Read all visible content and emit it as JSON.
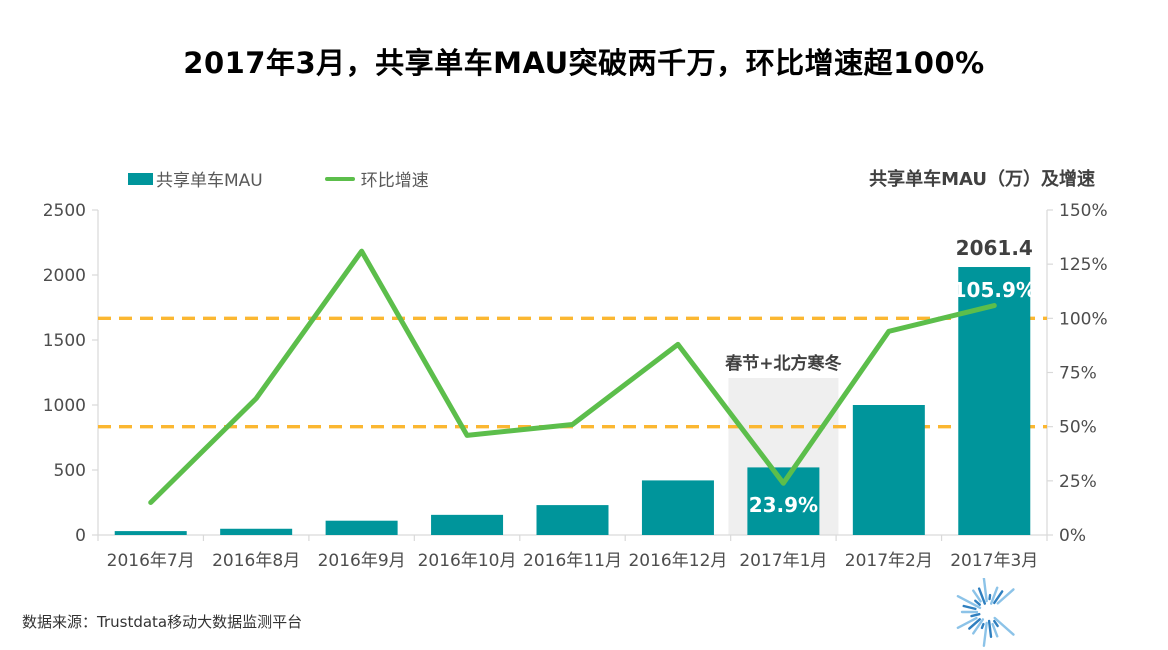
{
  "title": "2017年3月，共享单车MAU突破两千万，环比增速超100%",
  "legend": {
    "bar_label": "共享单车MAU",
    "line_label": "环比增速"
  },
  "right_axis_title": "共享单车MAU（万）及增速",
  "annotation": {
    "text": "春节+北方寒冬",
    "category": "2017年1月",
    "category_index": 6
  },
  "labels": {
    "peak_value": "2061.4",
    "peak_growth": "105.9%",
    "dip_growth": "23.9%"
  },
  "footer": {
    "source": "数据来源：Trustdata移动大数据监测平台",
    "logo_text": "Trustdata",
    "logo_icon": "sunburst-icon"
  },
  "colors": {
    "bar": "#00959B",
    "line": "#5CBE4B",
    "dashed": "#FBB731",
    "axis_line": "#D9D9D9",
    "axis_text": "#4D4D4D",
    "highlight": "#EFEFEF",
    "label_dark": "#404040",
    "label_white": "#FFFFFF",
    "logo_blue_dark": "#2F7FBF",
    "logo_blue_light": "#8CC3E8",
    "logo_text_color": "#5FA8DC"
  },
  "chart_data": {
    "type": "bar+line combo",
    "title": "2017年3月，共享单车MAU突破两千万，环比增速超100%",
    "categories": [
      "2016年7月",
      "2016年8月",
      "2016年9月",
      "2016年10月",
      "2016年11月",
      "2016年12月",
      "2017年1月",
      "2017年2月",
      "2017年3月"
    ],
    "series": [
      {
        "name": "共享单车MAU",
        "type": "bar",
        "axis": "left",
        "unit": "万",
        "values": [
          30,
          48,
          110,
          155,
          230,
          420,
          520,
          1000,
          2061.4
        ]
      },
      {
        "name": "环比增速",
        "type": "line",
        "axis": "right",
        "unit": "%",
        "values": [
          15,
          63,
          131,
          46,
          51,
          88,
          23.9,
          94,
          105.9
        ]
      }
    ],
    "left_axis": {
      "ticks": [
        "0",
        "500",
        "1000",
        "1500",
        "2000",
        "2500"
      ],
      "tick_values": [
        0,
        500,
        1000,
        1500,
        2000,
        2500
      ],
      "range": [
        0,
        2500
      ]
    },
    "right_axis": {
      "ticks": [
        "0%",
        "25%",
        "50%",
        "75%",
        "100%",
        "125%",
        "150%"
      ],
      "tick_values": [
        0,
        25,
        50,
        75,
        100,
        125,
        150
      ],
      "range": [
        0,
        150
      ]
    },
    "reference_lines_right_pct": [
      50,
      100
    ],
    "grid": "off",
    "legend_position": "top-left",
    "data_labels": [
      {
        "category": "2017年3月",
        "text": "2061.4",
        "placement": "above-bar"
      },
      {
        "category": "2017年3月",
        "text": "105.9%",
        "placement": "inside-bar-top"
      },
      {
        "category": "2017年1月",
        "text": "23.9%",
        "placement": "inside-bar"
      }
    ]
  }
}
